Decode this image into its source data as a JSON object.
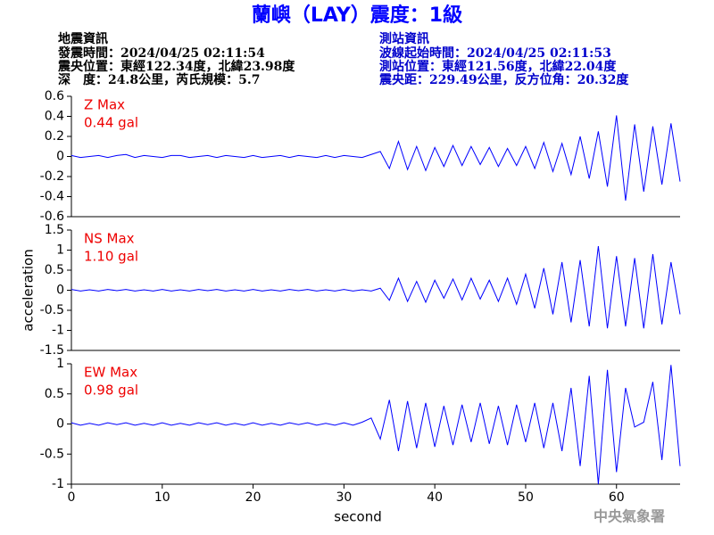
{
  "header": {
    "title": "蘭嶼（LAY）震度：1級",
    "quake_info": [
      "地震資訊",
      "發震時間：2024/04/25 02:11:54",
      "震央位置：東經122.34度，北緯23.98度",
      "深　度：24.8公里，芮氏規模：5.7"
    ],
    "station_info": [
      "測站資訊",
      "波線起始時間：2024/04/25 02:11:53",
      "測站位置：東經121.56度，北緯22.04度",
      "震央距：229.49公里，反方位角：20.32度"
    ]
  },
  "footer": "中央氣象署",
  "chart_data": [
    {
      "type": "line",
      "label": "Z Max",
      "max_label": "0.44 gal",
      "xlim": [
        0,
        67
      ],
      "ylim": [
        -0.6,
        0.6
      ],
      "yticks": [
        0.6,
        0.4,
        0.2,
        0,
        -0.2,
        -0.4,
        -0.6
      ],
      "x": [
        0,
        1,
        2,
        3,
        4,
        5,
        6,
        7,
        8,
        9,
        10,
        11,
        12,
        13,
        14,
        15,
        16,
        17,
        18,
        19,
        20,
        21,
        22,
        23,
        24,
        25,
        26,
        27,
        28,
        29,
        30,
        31,
        32,
        33,
        34,
        35,
        36,
        37,
        38,
        39,
        40,
        41,
        42,
        43,
        44,
        45,
        46,
        47,
        48,
        49,
        50,
        51,
        52,
        53,
        54,
        55,
        56,
        57,
        58,
        59,
        60,
        61,
        62,
        63,
        64,
        65,
        66,
        67
      ],
      "series": [
        {
          "color": "#0000ff",
          "values": [
            0.01,
            -0.01,
            0,
            0.01,
            -0.01,
            0.01,
            0.02,
            -0.01,
            0.01,
            0,
            -0.01,
            0.01,
            0.01,
            -0.01,
            0,
            0.01,
            -0.01,
            0.01,
            0,
            -0.01,
            0.01,
            -0.01,
            0,
            0.01,
            -0.01,
            0.01,
            0,
            -0.01,
            0.01,
            -0.01,
            0.01,
            0,
            -0.01,
            0.02,
            0.05,
            -0.12,
            0.15,
            -0.13,
            0.1,
            -0.14,
            0.09,
            -0.1,
            0.11,
            -0.09,
            0.1,
            -0.08,
            0.09,
            -0.1,
            0.08,
            -0.09,
            0.1,
            -0.12,
            0.14,
            -0.15,
            0.13,
            -0.18,
            0.2,
            -0.22,
            0.25,
            -0.3,
            0.41,
            -0.44,
            0.32,
            -0.35,
            0.3,
            -0.28,
            0.33,
            -0.25
          ]
        }
      ]
    },
    {
      "type": "line",
      "label": "NS Max",
      "max_label": "1.10 gal",
      "y_label": "acceleration",
      "xlim": [
        0,
        67
      ],
      "ylim": [
        -1.5,
        1.5
      ],
      "yticks": [
        1.5,
        1,
        0.5,
        0,
        -0.5,
        -1,
        -1.5
      ],
      "x": [
        0,
        1,
        2,
        3,
        4,
        5,
        6,
        7,
        8,
        9,
        10,
        11,
        12,
        13,
        14,
        15,
        16,
        17,
        18,
        19,
        20,
        21,
        22,
        23,
        24,
        25,
        26,
        27,
        28,
        29,
        30,
        31,
        32,
        33,
        34,
        35,
        36,
        37,
        38,
        39,
        40,
        41,
        42,
        43,
        44,
        45,
        46,
        47,
        48,
        49,
        50,
        51,
        52,
        53,
        54,
        55,
        56,
        57,
        58,
        59,
        60,
        61,
        62,
        63,
        64,
        65,
        66,
        67
      ],
      "series": [
        {
          "color": "#0000ff",
          "values": [
            0.02,
            -0.02,
            0.01,
            -0.02,
            0.02,
            -0.01,
            0.02,
            -0.02,
            0.01,
            -0.02,
            0.02,
            -0.02,
            0.01,
            -0.02,
            0.02,
            -0.01,
            0.02,
            -0.02,
            0.01,
            -0.02,
            0.02,
            -0.02,
            0.01,
            -0.02,
            0.02,
            -0.01,
            0.02,
            -0.02,
            0.01,
            -0.02,
            0.02,
            -0.02,
            0.01,
            -0.02,
            0.05,
            -0.25,
            0.3,
            -0.28,
            0.22,
            -0.3,
            0.25,
            -0.2,
            0.28,
            -0.24,
            0.3,
            -0.22,
            0.25,
            -0.28,
            0.3,
            -0.35,
            0.4,
            -0.45,
            0.55,
            -0.6,
            0.7,
            -0.8,
            0.75,
            -0.9,
            1.1,
            -0.95,
            0.85,
            -0.9,
            0.8,
            -0.95,
            0.9,
            -0.85,
            0.7,
            -0.6
          ]
        }
      ]
    },
    {
      "type": "line",
      "label": "EW Max",
      "max_label": "0.98 gal",
      "x_label": "second",
      "xlim": [
        0,
        67
      ],
      "ylim": [
        -1,
        1
      ],
      "yticks": [
        1,
        0.5,
        0,
        -0.5,
        -1
      ],
      "xticks": [
        0,
        10,
        20,
        30,
        40,
        50,
        60
      ],
      "x": [
        0,
        1,
        2,
        3,
        4,
        5,
        6,
        7,
        8,
        9,
        10,
        11,
        12,
        13,
        14,
        15,
        16,
        17,
        18,
        19,
        20,
        21,
        22,
        23,
        24,
        25,
        26,
        27,
        28,
        29,
        30,
        31,
        32,
        33,
        34,
        35,
        36,
        37,
        38,
        39,
        40,
        41,
        42,
        43,
        44,
        45,
        46,
        47,
        48,
        49,
        50,
        51,
        52,
        53,
        54,
        55,
        56,
        57,
        58,
        59,
        60,
        61,
        62,
        63,
        64,
        65,
        66,
        67
      ],
      "series": [
        {
          "color": "#0000ff",
          "values": [
            0.02,
            -0.02,
            0.01,
            -0.02,
            0.02,
            -0.01,
            0.02,
            -0.02,
            0.01,
            -0.02,
            0.02,
            -0.02,
            0.01,
            -0.02,
            0.02,
            -0.01,
            0.02,
            -0.02,
            0.01,
            -0.02,
            0.02,
            -0.02,
            0.01,
            -0.02,
            0.02,
            -0.01,
            0.02,
            -0.02,
            0.01,
            -0.02,
            0.02,
            -0.02,
            0.03,
            0.1,
            -0.25,
            0.4,
            -0.45,
            0.38,
            -0.4,
            0.35,
            -0.38,
            0.3,
            -0.35,
            0.32,
            -0.3,
            0.35,
            -0.33,
            0.3,
            -0.35,
            0.32,
            -0.3,
            0.35,
            -0.4,
            0.35,
            -0.45,
            0.6,
            -0.7,
            0.8,
            -1.0,
            0.9,
            -0.8,
            0.6,
            -0.05,
            0.03,
            0.7,
            -0.6,
            0.98,
            -0.7
          ]
        }
      ]
    }
  ]
}
